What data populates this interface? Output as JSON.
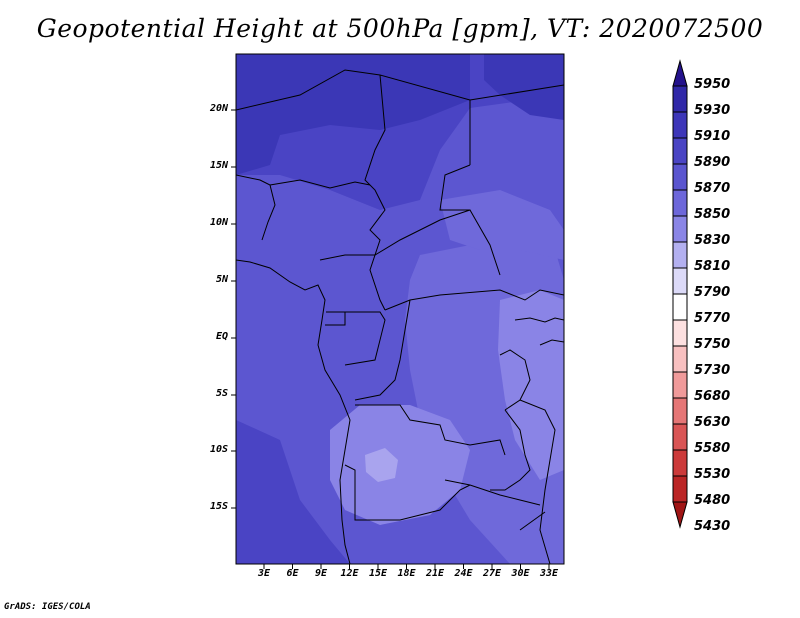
{
  "title": "Geopotential Height at 500hPa [gpm], VT: 2020072500",
  "credit": "GrADS: IGES/COLA",
  "lat_labels": [
    "20N",
    "15N",
    "10N",
    "5N",
    "EQ",
    "5S",
    "10S",
    "15S"
  ],
  "lon_labels": [
    "3E",
    "6E",
    "9E",
    "12E",
    "15E",
    "18E",
    "21E",
    "24E",
    "27E",
    "30E",
    "33E"
  ],
  "colorbar": {
    "levels": [
      "5950",
      "5930",
      "5910",
      "5890",
      "5870",
      "5850",
      "5830",
      "5810",
      "5790",
      "5770",
      "5750",
      "5730",
      "5680",
      "5630",
      "5580",
      "5530",
      "5480",
      "5430"
    ],
    "colors": [
      "#24128c",
      "#3028a8",
      "#3d36b8",
      "#4a44c4",
      "#5a55cf",
      "#6d67da",
      "#8a85e6",
      "#b3b0f0",
      "#dcdaf8",
      "#ffffff",
      "#fde0e0",
      "#f8c0c0",
      "#f09a9a",
      "#e57676",
      "#d95555",
      "#cc3a3a",
      "#bb2525",
      "#a01515"
    ]
  },
  "map_colors": {
    "darkest": "#3b37b6",
    "dark": "#4a44c4",
    "mid": "#5c56d0",
    "light": "#6f69da",
    "lighter": "#8a84e6",
    "lightest": "#a9a4ee",
    "border": "#000000"
  }
}
